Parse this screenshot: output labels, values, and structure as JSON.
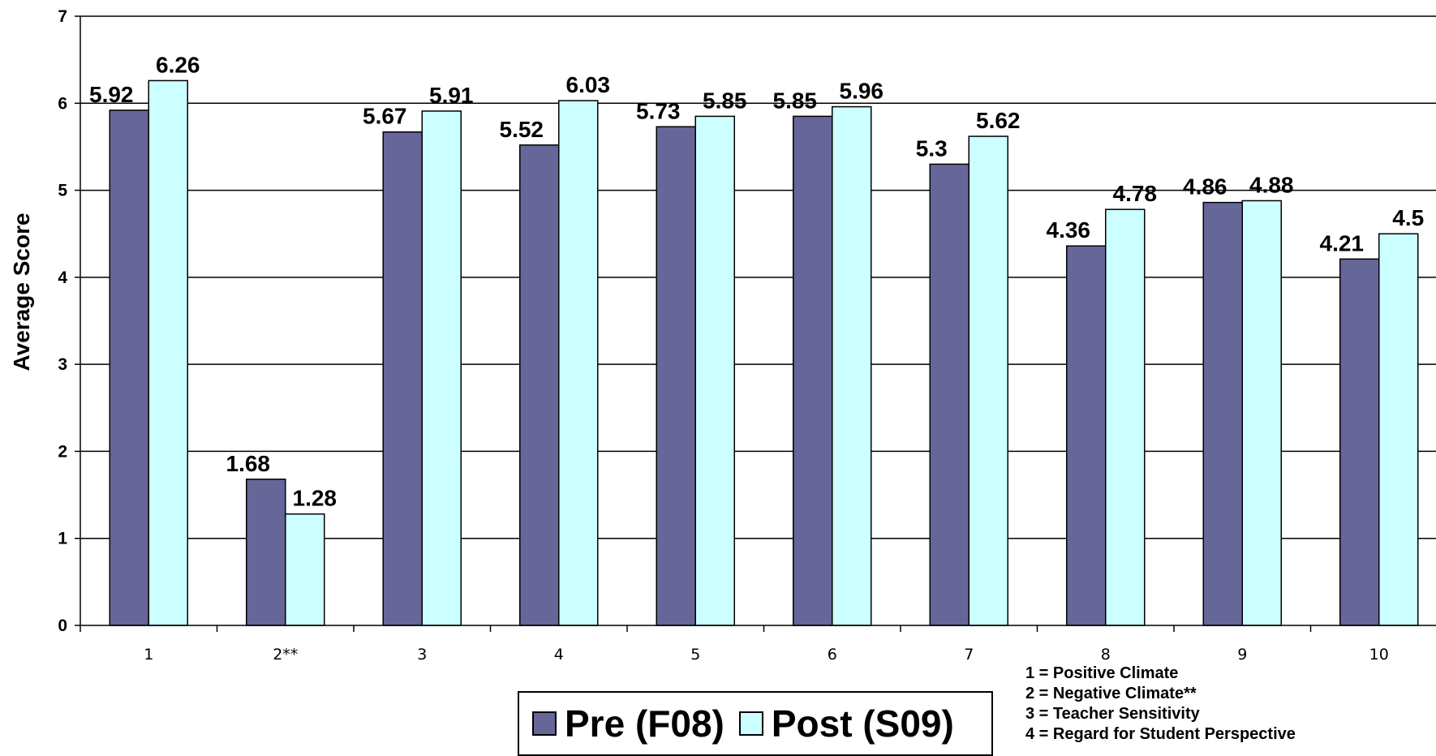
{
  "chart_data": {
    "type": "bar",
    "title": "",
    "xlabel": "",
    "ylabel": "Average Score",
    "ylim": [
      0,
      7
    ],
    "yticks": [
      "0",
      "1",
      "2",
      "3",
      "4",
      "5",
      "6",
      "7"
    ],
    "grid": true,
    "categories": [
      "1",
      "2**",
      "3",
      "4",
      "5",
      "6",
      "7",
      "8",
      "9",
      "10"
    ],
    "series": [
      {
        "name": "Pre (F08)",
        "color": "#666699",
        "values": [
          5.92,
          1.68,
          5.67,
          5.52,
          5.73,
          5.85,
          5.3,
          4.36,
          4.86,
          4.21
        ],
        "labels": [
          "5.92",
          "1.68",
          "5.67",
          "5.52",
          "5.73",
          "5.85",
          "5.3",
          "4.36",
          "4.86",
          "4.21"
        ]
      },
      {
        "name": "Post (S09)",
        "color": "#ccffff",
        "values": [
          6.26,
          1.28,
          5.91,
          6.03,
          5.85,
          5.96,
          5.62,
          4.78,
          4.88,
          4.5
        ],
        "labels": [
          "6.26",
          "1.28",
          "5.91",
          "6.03",
          "5.85",
          "5.96",
          "5.62",
          "4.78",
          "4.88",
          "4.5"
        ]
      }
    ],
    "legend_position": "bottom-center",
    "key": [
      "1 = Positive Climate",
      "2 = Negative Climate**",
      "3 = Teacher Sensitivity",
      "4 = Regard for Student Perspective"
    ]
  }
}
